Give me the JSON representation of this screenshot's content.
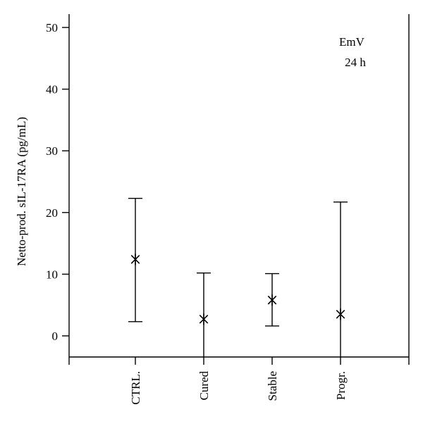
{
  "chart_data": {
    "type": "scatter",
    "title": "",
    "xlabel": "",
    "ylabel": "Netto-prod. sIL-17RA (pg/mL)",
    "ylim": [
      -3.5,
      51
    ],
    "yticks": [
      0,
      10,
      20,
      30,
      40,
      50
    ],
    "grid": false,
    "categories": [
      "CTRL.",
      "Cured",
      "Stable",
      "Progr."
    ],
    "series": [
      {
        "values": [
          12.4,
          2.7,
          5.8,
          3.5
        ],
        "lower": [
          2.3,
          -3.5,
          1.6,
          -3.5
        ],
        "upper": [
          22.3,
          10.2,
          10.1,
          21.7
        ]
      }
    ],
    "annotations": [
      "EmV",
      "24 h"
    ],
    "colors": {
      "mark": "#000000",
      "axis": "#000000",
      "background": "#ffffff"
    }
  }
}
